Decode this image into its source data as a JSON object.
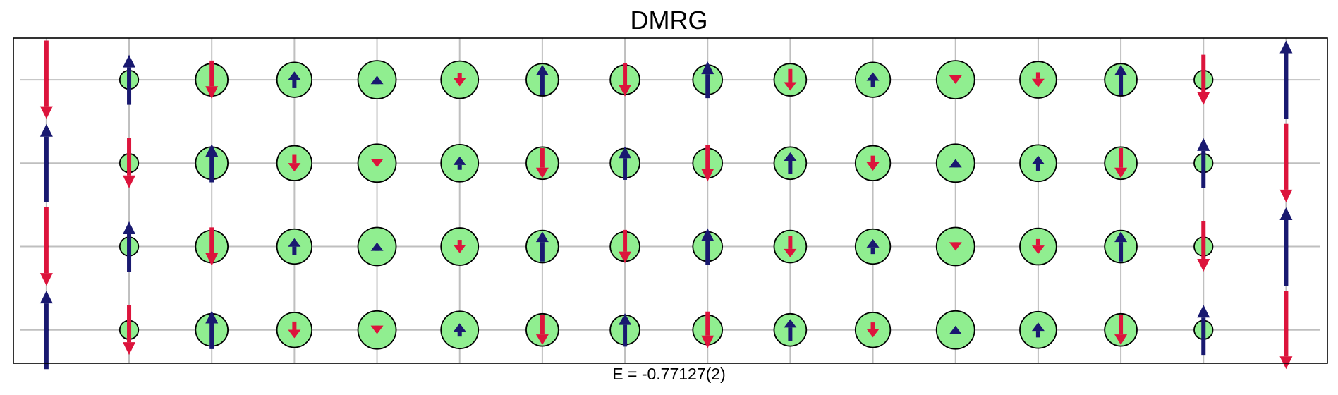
{
  "chart_data": {
    "type": "scatter",
    "title": "DMRG",
    "xlabel": "E = -0.77127(2)",
    "ylabel": "",
    "grid": true,
    "xlim": [
      -0.4,
      15.5
    ],
    "ylim": [
      -0.4,
      3.5
    ],
    "columns": 16,
    "rows": 4,
    "site_fill_color": "#90ee90",
    "site_edge_color": "#000000",
    "spin_up_color": "#191970",
    "spin_down_color": "#dc143c",
    "grid_color": "#bfbfbf",
    "hole_density": [
      0.0,
      0.12,
      0.36,
      0.42,
      0.5,
      0.48,
      0.36,
      0.3,
      0.3,
      0.36,
      0.42,
      0.5,
      0.46,
      0.36,
      0.12,
      0.0
    ],
    "spin_magnitude": [
      0.47,
      0.3,
      0.23,
      0.1,
      0.05,
      0.08,
      0.18,
      0.2,
      0.22,
      0.13,
      0.09,
      0.05,
      0.09,
      0.18,
      0.3,
      0.47
    ],
    "spin_sign": [
      [
        -1,
        1,
        -1,
        1,
        1,
        -1,
        1,
        -1,
        1,
        -1,
        1,
        -1,
        -1,
        1,
        -1,
        1
      ],
      [
        1,
        -1,
        1,
        -1,
        -1,
        1,
        -1,
        1,
        -1,
        1,
        -1,
        1,
        1,
        -1,
        1,
        -1
      ],
      [
        -1,
        1,
        -1,
        1,
        1,
        -1,
        1,
        -1,
        1,
        -1,
        1,
        -1,
        -1,
        1,
        -1,
        1
      ],
      [
        1,
        -1,
        1,
        -1,
        -1,
        1,
        -1,
        1,
        -1,
        1,
        -1,
        1,
        1,
        -1,
        1,
        -1
      ]
    ]
  }
}
